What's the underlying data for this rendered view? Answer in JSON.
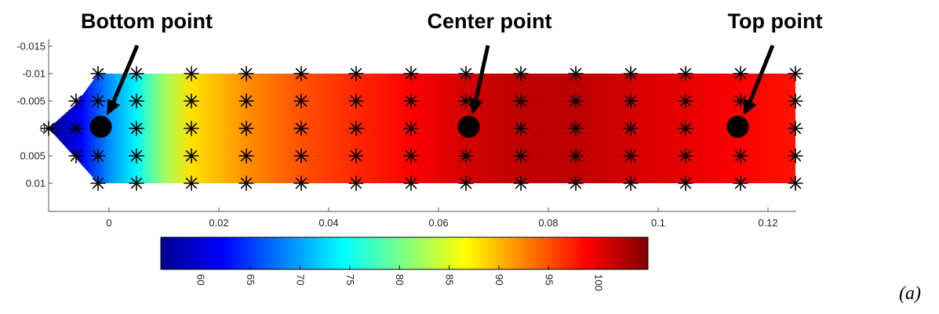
{
  "chart_data": {
    "type": "heatmap",
    "title": "",
    "xlabel": "",
    "ylabel": "",
    "xlim": [
      -0.011,
      0.125
    ],
    "ylim": [
      -0.015,
      0.013
    ],
    "y_reversed": true,
    "x_ticks": [
      "0",
      "0.02",
      "0.04",
      "0.06",
      "0.08",
      "0.1",
      "0.12"
    ],
    "x_tick_values": [
      0,
      0.02,
      0.04,
      0.06,
      0.08,
      0.1,
      0.12
    ],
    "y_ticks": [
      "-0.015",
      "-0.01",
      "-0.005",
      "0",
      "0.005",
      "0.01"
    ],
    "y_tick_values": [
      -0.015,
      -0.01,
      -0.005,
      0,
      0.005,
      0.01
    ],
    "colormap": "jet",
    "colorbar": {
      "range": [
        56,
        105
      ],
      "tick_values": [
        60,
        65,
        70,
        75,
        80,
        85,
        90,
        95,
        100
      ],
      "tick_labels": [
        "60",
        "65",
        "70",
        "75",
        "80",
        "85",
        "90",
        "95",
        "100"
      ],
      "placement": "bottom"
    },
    "field": {
      "x": [
        -0.011,
        -0.005,
        0,
        0.005,
        0.01,
        0.015,
        0.025,
        0.035,
        0.045,
        0.055,
        0.065,
        0.075,
        0.085,
        0.095,
        0.105,
        0.115,
        0.125
      ],
      "values": [
        56,
        62,
        69,
        74,
        82,
        88,
        92,
        95,
        97,
        99,
        101,
        102,
        102,
        101,
        100,
        99,
        98
      ]
    },
    "domain_shape": {
      "tip": [
        -0.011,
        0
      ],
      "shoulder_top": [
        -0.006,
        -0.0045
      ],
      "shoulder_bottom": [
        -0.006,
        0.0055
      ],
      "left_top": [
        -0.002,
        -0.01
      ],
      "left_bottom": [
        -0.002,
        0.01
      ],
      "right_edge": 0.125
    },
    "mesh_points": {
      "columns_x": [
        -0.002,
        0.005,
        0.015,
        0.025,
        0.035,
        0.045,
        0.055,
        0.065,
        0.075,
        0.085,
        0.095,
        0.105,
        0.115,
        0.125
      ],
      "rows_y": [
        -0.01,
        -0.005,
        0,
        0.005,
        0.01
      ],
      "extra": [
        [
          -0.011,
          0
        ],
        [
          -0.006,
          -0.005
        ],
        [
          -0.006,
          0
        ],
        [
          -0.006,
          0.005
        ]
      ]
    },
    "annotations": [
      {
        "label": "Bottom point",
        "x": -0.0015,
        "y": -0.0003
      },
      {
        "label": "Center point",
        "x": 0.0655,
        "y": -0.0003
      },
      {
        "label": "Top point",
        "x": 0.1145,
        "y": -0.0003
      }
    ],
    "panel_label": "(a)"
  }
}
